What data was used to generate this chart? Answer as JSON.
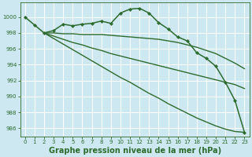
{
  "background_color": "#cde8f0",
  "grid_color": "#b0d8e0",
  "line_color": "#2d6a2d",
  "xlabel": "Graphe pression niveau de la mer (hPa)",
  "xlabel_fontsize": 7.0,
  "xlim": [
    -0.5,
    23.5
  ],
  "ylim": [
    985.0,
    1001.8
  ],
  "yticks": [
    986,
    988,
    990,
    992,
    994,
    996,
    998,
    1000
  ],
  "xticks": [
    0,
    1,
    2,
    3,
    4,
    5,
    6,
    7,
    8,
    9,
    10,
    11,
    12,
    13,
    14,
    15,
    16,
    17,
    18,
    19,
    20,
    21,
    22,
    23
  ],
  "series": [
    {
      "x": [
        0,
        1,
        2,
        3,
        4,
        5,
        6,
        7,
        8,
        9,
        10,
        11,
        12,
        13,
        14,
        15,
        16,
        17,
        18,
        19,
        20,
        21,
        22,
        23
      ],
      "y": [
        1000.0,
        999.0,
        998.0,
        998.3,
        999.1,
        998.9,
        999.1,
        999.2,
        999.5,
        999.2,
        1000.5,
        1001.0,
        1001.1,
        1000.5,
        999.3,
        998.5,
        997.5,
        997.0,
        995.5,
        994.8,
        993.8,
        991.8,
        989.5,
        985.5
      ],
      "marker": "D",
      "markersize": 2.2,
      "linewidth": 1.1,
      "has_marker": true
    },
    {
      "x": [
        2,
        3,
        4,
        5,
        6,
        7,
        8,
        9,
        10,
        11,
        12,
        13,
        14,
        15,
        16,
        17,
        18,
        19,
        20,
        21,
        22,
        23
      ],
      "y": [
        998.0,
        998.0,
        997.9,
        997.9,
        997.8,
        997.8,
        997.8,
        997.7,
        997.6,
        997.5,
        997.4,
        997.3,
        997.2,
        997.0,
        996.8,
        996.5,
        996.2,
        995.8,
        995.4,
        994.8,
        994.2,
        993.5
      ],
      "marker": "D",
      "markersize": 0,
      "linewidth": 1.0,
      "has_marker": false
    },
    {
      "x": [
        2,
        3,
        4,
        5,
        6,
        7,
        8,
        9,
        10,
        11,
        12,
        13,
        14,
        15,
        16,
        17,
        18,
        19,
        20,
        21,
        22,
        23
      ],
      "y": [
        998.0,
        997.6,
        997.2,
        996.8,
        996.5,
        996.1,
        995.8,
        995.4,
        995.1,
        994.8,
        994.5,
        994.2,
        993.9,
        993.6,
        993.3,
        993.0,
        992.7,
        992.4,
        992.1,
        991.8,
        991.5,
        991.0
      ],
      "marker": "D",
      "markersize": 0,
      "linewidth": 1.0,
      "has_marker": false
    },
    {
      "x": [
        2,
        3,
        4,
        5,
        6,
        7,
        8,
        9,
        10,
        11,
        12,
        13,
        14,
        15,
        16,
        17,
        18,
        19,
        20,
        21,
        22,
        23
      ],
      "y": [
        998.0,
        997.3,
        996.6,
        995.9,
        995.2,
        994.5,
        993.8,
        993.1,
        992.4,
        991.8,
        991.1,
        990.4,
        989.8,
        989.1,
        988.5,
        987.9,
        987.3,
        986.8,
        986.3,
        985.9,
        985.6,
        985.5
      ],
      "marker": "D",
      "markersize": 0,
      "linewidth": 1.0,
      "has_marker": false
    }
  ]
}
